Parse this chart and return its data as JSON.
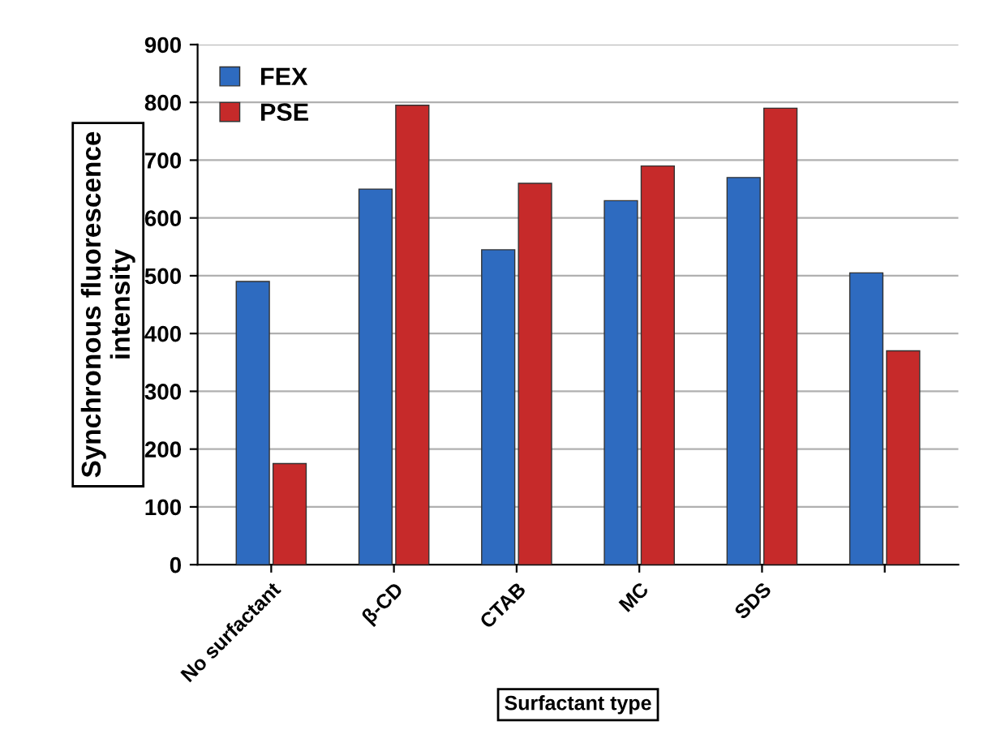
{
  "chart_data": {
    "type": "bar",
    "xlabel": "Surfactant type",
    "ylabel": "Synchronous fluorescence\nintensity",
    "categories": [
      "No surfactant",
      "β-CD",
      "CTAB",
      "MC",
      "SDS",
      null
    ],
    "series": [
      {
        "name": "FEX",
        "color": "#2e6bc0",
        "values": [
          490,
          650,
          545,
          630,
          670,
          505
        ]
      },
      {
        "name": "PSE",
        "color": "#c62a2a",
        "values": [
          175,
          795,
          660,
          690,
          790,
          370
        ]
      }
    ],
    "ylim": [
      0,
      900
    ],
    "yticks": [
      0,
      100,
      200,
      300,
      400,
      500,
      600,
      700,
      800,
      900
    ],
    "grid": "y",
    "legend": "top left"
  }
}
